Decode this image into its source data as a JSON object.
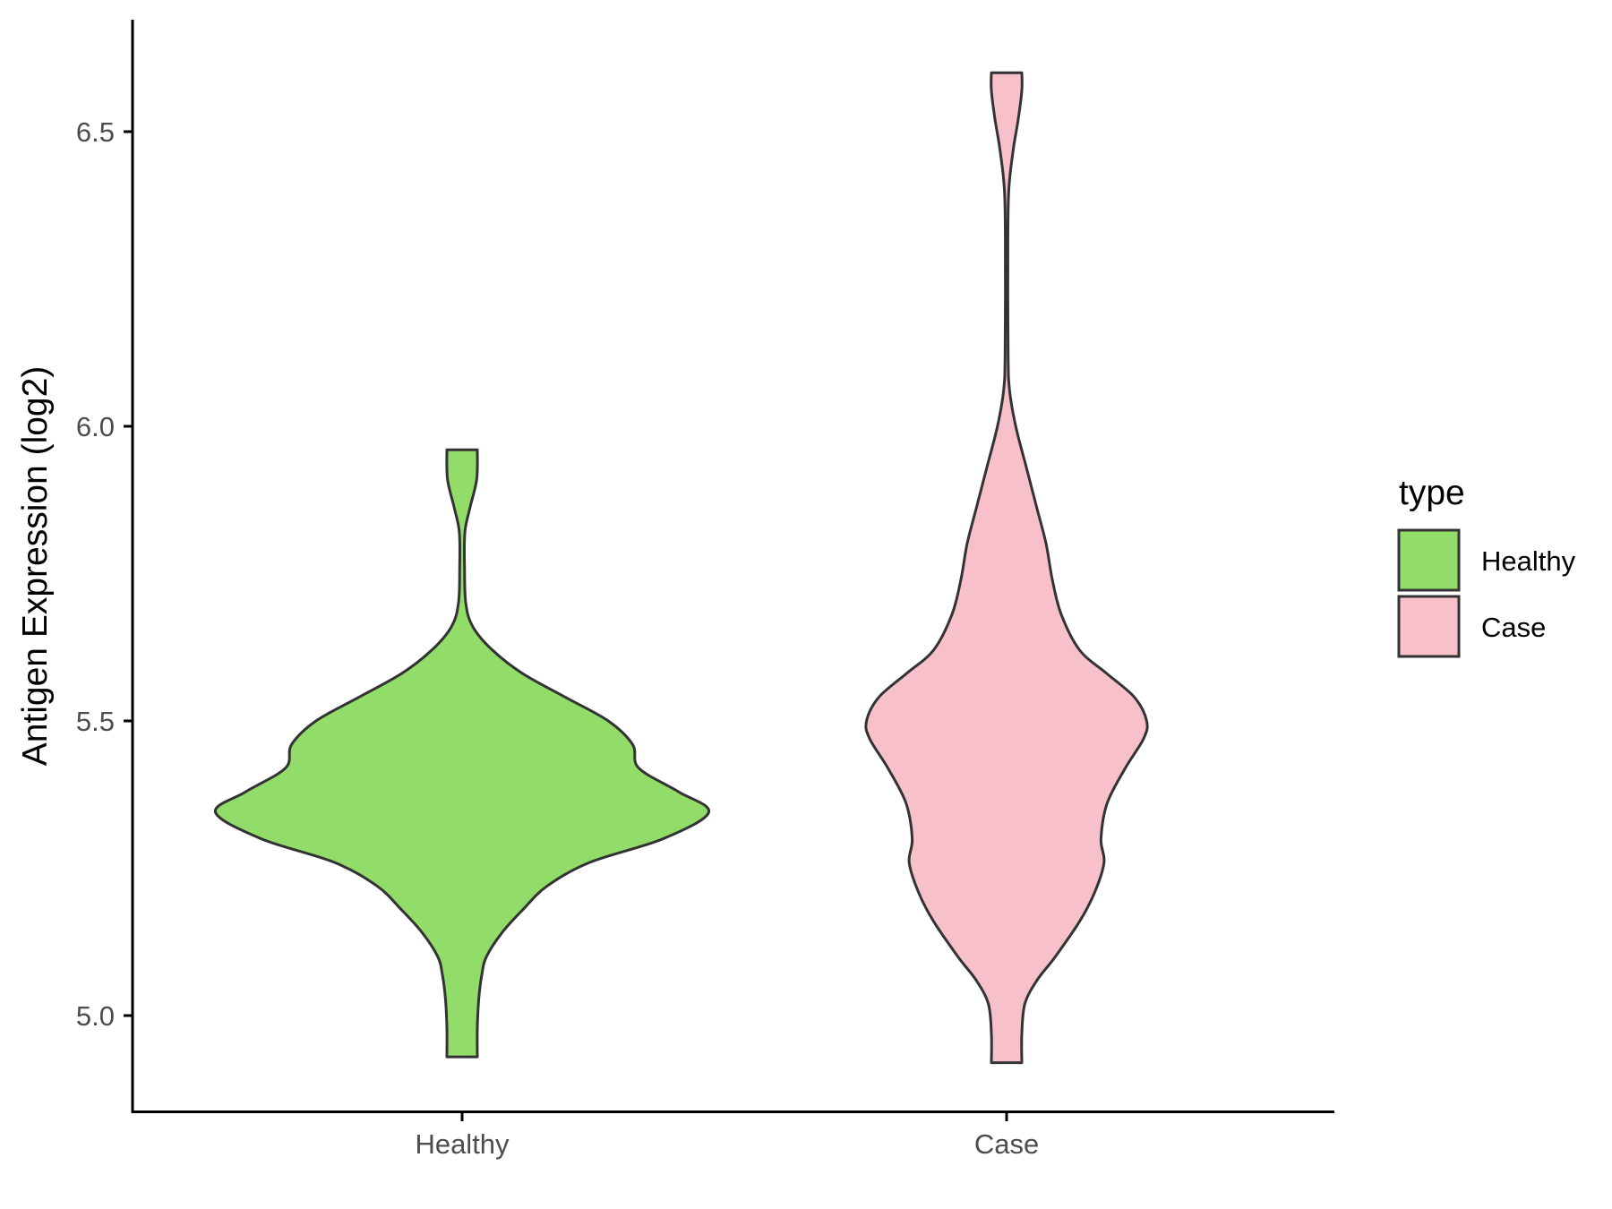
{
  "chart_data": {
    "type": "violin",
    "title": "",
    "xlabel": "",
    "ylabel": "Antigen Expression (log2)",
    "ylim": [
      4.85,
      6.68
    ],
    "yticks": [
      "5.0",
      "5.5",
      "6.0",
      "6.5"
    ],
    "categories": [
      "Healthy",
      "Case"
    ],
    "grid": false,
    "legend": {
      "title": "type",
      "position": "right",
      "entries": [
        "Healthy",
        "Case"
      ]
    },
    "series": [
      {
        "name": "Healthy",
        "color": "#92DC6A",
        "min": 4.93,
        "max": 5.96,
        "density": [
          [
            4.93,
            0.05
          ],
          [
            4.98,
            0.05
          ],
          [
            5.03,
            0.055
          ],
          [
            5.07,
            0.065
          ],
          [
            5.1,
            0.08
          ],
          [
            5.14,
            0.13
          ],
          [
            5.18,
            0.2
          ],
          [
            5.22,
            0.28
          ],
          [
            5.26,
            0.42
          ],
          [
            5.3,
            0.66
          ],
          [
            5.345,
            0.81
          ],
          [
            5.38,
            0.71
          ],
          [
            5.42,
            0.58
          ],
          [
            5.46,
            0.56
          ],
          [
            5.5,
            0.48
          ],
          [
            5.54,
            0.34
          ],
          [
            5.58,
            0.2
          ],
          [
            5.62,
            0.1
          ],
          [
            5.66,
            0.035
          ],
          [
            5.7,
            0.012
          ],
          [
            5.76,
            0.008
          ],
          [
            5.82,
            0.009
          ],
          [
            5.86,
            0.025
          ],
          [
            5.91,
            0.048
          ],
          [
            5.96,
            0.05
          ]
        ]
      },
      {
        "name": "Case",
        "color": "#F7C0CB",
        "min": 4.92,
        "max": 6.6,
        "density": [
          [
            4.92,
            0.05
          ],
          [
            4.97,
            0.05
          ],
          [
            5.02,
            0.06
          ],
          [
            5.06,
            0.1
          ],
          [
            5.1,
            0.16
          ],
          [
            5.16,
            0.24
          ],
          [
            5.21,
            0.29
          ],
          [
            5.26,
            0.32
          ],
          [
            5.3,
            0.31
          ],
          [
            5.36,
            0.33
          ],
          [
            5.42,
            0.39
          ],
          [
            5.47,
            0.45
          ],
          [
            5.5,
            0.46
          ],
          [
            5.54,
            0.42
          ],
          [
            5.58,
            0.33
          ],
          [
            5.62,
            0.24
          ],
          [
            5.68,
            0.18
          ],
          [
            5.74,
            0.15
          ],
          [
            5.8,
            0.13
          ],
          [
            5.86,
            0.1
          ],
          [
            5.93,
            0.065
          ],
          [
            6.0,
            0.03
          ],
          [
            6.06,
            0.01
          ],
          [
            6.12,
            0.005
          ],
          [
            6.3,
            0.004
          ],
          [
            6.4,
            0.007
          ],
          [
            6.47,
            0.022
          ],
          [
            6.52,
            0.038
          ],
          [
            6.57,
            0.05
          ],
          [
            6.6,
            0.05
          ]
        ]
      }
    ]
  }
}
